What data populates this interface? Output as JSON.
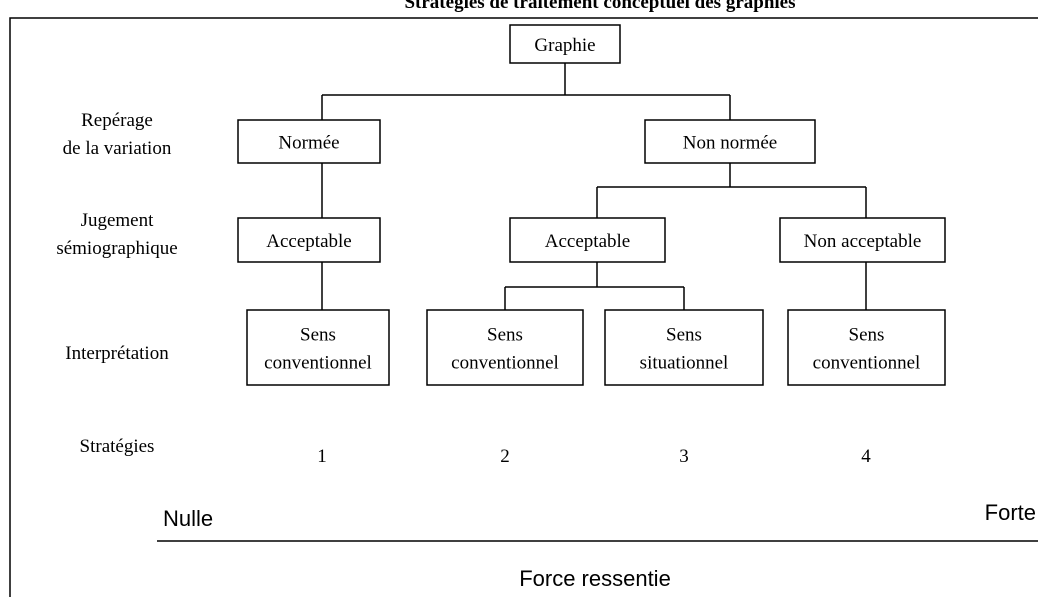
{
  "title": "Stratégies de traitement conceptuel des graphies",
  "levels": [
    [
      "Repérage",
      "de la variation"
    ],
    [
      "Jugement",
      "sémiographique"
    ],
    [
      "Interprétation"
    ],
    [
      "Stratégies"
    ]
  ],
  "nodes": [
    {
      "id": "graphie",
      "lines": [
        "Graphie"
      ]
    },
    {
      "id": "normee",
      "lines": [
        "Normée"
      ]
    },
    {
      "id": "non-normee",
      "lines": [
        "Non normée"
      ]
    },
    {
      "id": "acceptable-1",
      "lines": [
        "Acceptable"
      ]
    },
    {
      "id": "acceptable-2",
      "lines": [
        "Acceptable"
      ]
    },
    {
      "id": "non-acceptable",
      "lines": [
        "Non acceptable"
      ]
    },
    {
      "id": "sens-1",
      "lines": [
        "Sens",
        "conventionnel"
      ]
    },
    {
      "id": "sens-2",
      "lines": [
        "Sens",
        "conventionnel"
      ]
    },
    {
      "id": "sens-3",
      "lines": [
        "Sens",
        "situationnel"
      ]
    },
    {
      "id": "sens-4",
      "lines": [
        "Sens",
        "conventionnel"
      ]
    }
  ],
  "strategies": [
    "1",
    "2",
    "3",
    "4"
  ],
  "scale": {
    "min": "Nulle",
    "max": "Forte",
    "label": "Force ressentie"
  }
}
